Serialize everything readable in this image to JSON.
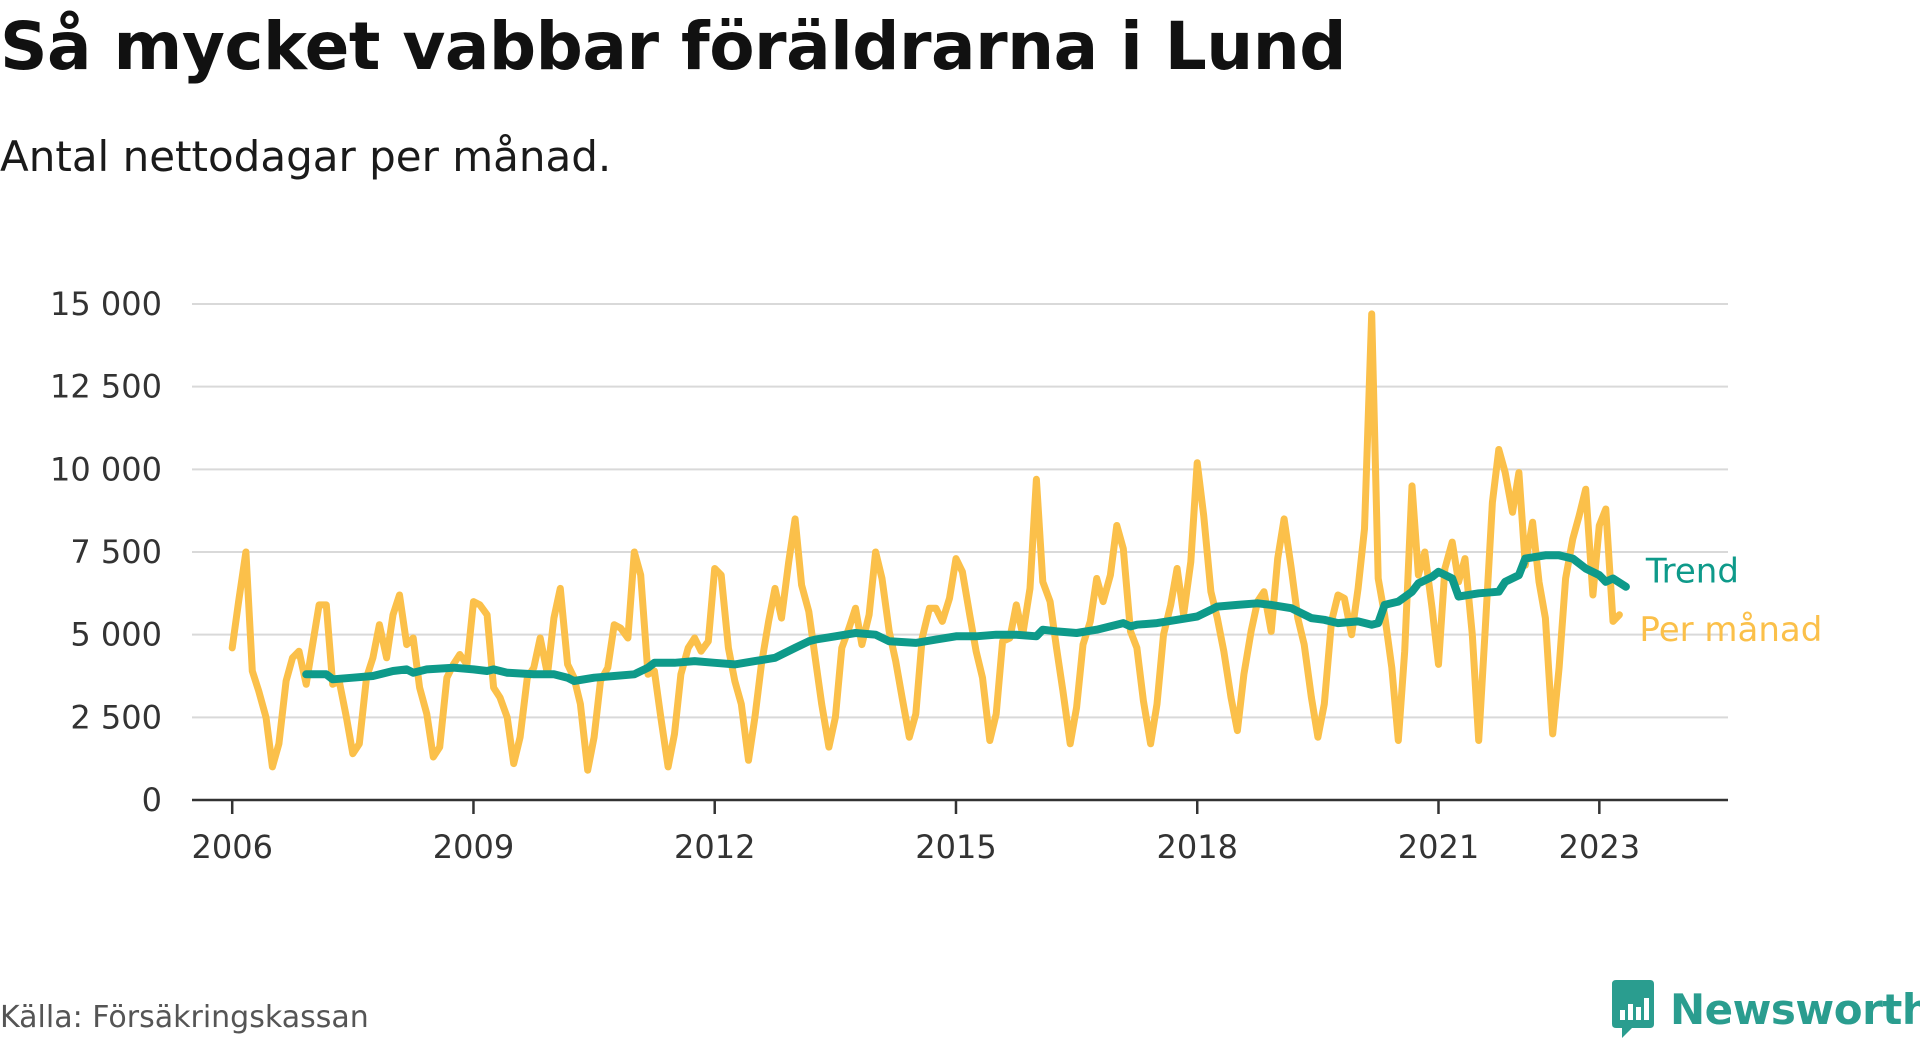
{
  "title": "Så mycket vabbar föräldrarna i Lund",
  "subtitle": "Antal nettodagar per månad.",
  "source": "Källa: Försäkringskassan",
  "logo_text": "Newsworthy",
  "colors": {
    "monthly": "#fbc04a",
    "trend": "#0e9a8a",
    "grid": "#d9d9d9",
    "axis": "#333333",
    "logo": "#2a9d8f"
  },
  "chart_data": {
    "type": "line",
    "title": "Så mycket vabbar föräldrarna i Lund",
    "subtitle": "Antal nettodagar per månad.",
    "xlabel": "",
    "ylabel": "",
    "xlim": [
      2005.5,
      2024.6
    ],
    "ylim": [
      0,
      15000
    ],
    "yticks": [
      0,
      2500,
      5000,
      7500,
      10000,
      12500,
      15000
    ],
    "ytick_labels": [
      "0",
      "2 500",
      "5 000",
      "7 500",
      "10 000",
      "12 500",
      "15 000"
    ],
    "xticks": [
      2006,
      2009,
      2012,
      2015,
      2018,
      2021,
      2023
    ],
    "xtick_labels": [
      "2006",
      "2009",
      "2012",
      "2015",
      "2018",
      "2021",
      "2023"
    ],
    "grid": true,
    "legend": "direct labels at line ends",
    "series": [
      {
        "name": "Per månad",
        "color": "#fbc04a",
        "points": [
          [
            2006.0,
            4600
          ],
          [
            2006.08,
            6000
          ],
          [
            2006.17,
            7500
          ],
          [
            2006.25,
            3900
          ],
          [
            2006.33,
            3300
          ],
          [
            2006.42,
            2500
          ],
          [
            2006.5,
            1000
          ],
          [
            2006.58,
            1700
          ],
          [
            2006.67,
            3600
          ],
          [
            2006.75,
            4300
          ],
          [
            2006.83,
            4500
          ],
          [
            2006.92,
            3500
          ],
          [
            2007.0,
            4700
          ],
          [
            2007.08,
            5900
          ],
          [
            2007.17,
            5900
          ],
          [
            2007.25,
            3500
          ],
          [
            2007.33,
            3600
          ],
          [
            2007.42,
            2500
          ],
          [
            2007.5,
            1400
          ],
          [
            2007.58,
            1700
          ],
          [
            2007.67,
            3700
          ],
          [
            2007.75,
            4300
          ],
          [
            2007.83,
            5300
          ],
          [
            2007.92,
            4300
          ],
          [
            2008.0,
            5600
          ],
          [
            2008.08,
            6200
          ],
          [
            2008.17,
            4700
          ],
          [
            2008.25,
            4900
          ],
          [
            2008.33,
            3400
          ],
          [
            2008.42,
            2600
          ],
          [
            2008.5,
            1300
          ],
          [
            2008.58,
            1600
          ],
          [
            2008.67,
            3700
          ],
          [
            2008.75,
            4100
          ],
          [
            2008.83,
            4400
          ],
          [
            2008.92,
            4100
          ],
          [
            2009.0,
            6000
          ],
          [
            2009.08,
            5900
          ],
          [
            2009.17,
            5600
          ],
          [
            2009.25,
            3400
          ],
          [
            2009.33,
            3100
          ],
          [
            2009.42,
            2500
          ],
          [
            2009.5,
            1100
          ],
          [
            2009.58,
            1900
          ],
          [
            2009.67,
            3700
          ],
          [
            2009.75,
            4000
          ],
          [
            2009.83,
            4900
          ],
          [
            2009.92,
            3800
          ],
          [
            2010.0,
            5500
          ],
          [
            2010.08,
            6400
          ],
          [
            2010.17,
            4100
          ],
          [
            2010.25,
            3700
          ],
          [
            2010.33,
            2900
          ],
          [
            2010.42,
            900
          ],
          [
            2010.5,
            1900
          ],
          [
            2010.58,
            3600
          ],
          [
            2010.67,
            4000
          ],
          [
            2010.75,
            5300
          ],
          [
            2010.83,
            5200
          ],
          [
            2010.92,
            4900
          ],
          [
            2011.0,
            7500
          ],
          [
            2011.08,
            6800
          ],
          [
            2011.17,
            3800
          ],
          [
            2011.25,
            3900
          ],
          [
            2011.33,
            2500
          ],
          [
            2011.42,
            1000
          ],
          [
            2011.5,
            2000
          ],
          [
            2011.58,
            3800
          ],
          [
            2011.67,
            4600
          ],
          [
            2011.75,
            4900
          ],
          [
            2011.83,
            4500
          ],
          [
            2011.92,
            4800
          ],
          [
            2012.0,
            7000
          ],
          [
            2012.08,
            6800
          ],
          [
            2012.17,
            4600
          ],
          [
            2012.25,
            3600
          ],
          [
            2012.33,
            2900
          ],
          [
            2012.42,
            1200
          ],
          [
            2012.5,
            2500
          ],
          [
            2012.58,
            4100
          ],
          [
            2012.67,
            5400
          ],
          [
            2012.75,
            6400
          ],
          [
            2012.83,
            5500
          ],
          [
            2012.92,
            7200
          ],
          [
            2013.0,
            8500
          ],
          [
            2013.08,
            6500
          ],
          [
            2013.17,
            5700
          ],
          [
            2013.25,
            4300
          ],
          [
            2013.33,
            2900
          ],
          [
            2013.42,
            1600
          ],
          [
            2013.5,
            2500
          ],
          [
            2013.58,
            4600
          ],
          [
            2013.67,
            5200
          ],
          [
            2013.75,
            5800
          ],
          [
            2013.83,
            4700
          ],
          [
            2013.92,
            5600
          ],
          [
            2014.0,
            7500
          ],
          [
            2014.08,
            6700
          ],
          [
            2014.17,
            5100
          ],
          [
            2014.25,
            4200
          ],
          [
            2014.33,
            3100
          ],
          [
            2014.42,
            1900
          ],
          [
            2014.5,
            2600
          ],
          [
            2014.58,
            4900
          ],
          [
            2014.67,
            5800
          ],
          [
            2014.75,
            5800
          ],
          [
            2014.83,
            5400
          ],
          [
            2014.92,
            6100
          ],
          [
            2015.0,
            7300
          ],
          [
            2015.08,
            6900
          ],
          [
            2015.17,
            5600
          ],
          [
            2015.25,
            4500
          ],
          [
            2015.33,
            3700
          ],
          [
            2015.42,
            1800
          ],
          [
            2015.5,
            2600
          ],
          [
            2015.58,
            4800
          ],
          [
            2015.67,
            4900
          ],
          [
            2015.75,
            5900
          ],
          [
            2015.83,
            5000
          ],
          [
            2015.92,
            6400
          ],
          [
            2016.0,
            9700
          ],
          [
            2016.08,
            6600
          ],
          [
            2016.17,
            6000
          ],
          [
            2016.25,
            4600
          ],
          [
            2016.33,
            3300
          ],
          [
            2016.42,
            1700
          ],
          [
            2016.5,
            2800
          ],
          [
            2016.58,
            4700
          ],
          [
            2016.67,
            5400
          ],
          [
            2016.75,
            6700
          ],
          [
            2016.83,
            6000
          ],
          [
            2016.92,
            6800
          ],
          [
            2017.0,
            8300
          ],
          [
            2017.08,
            7600
          ],
          [
            2017.17,
            5100
          ],
          [
            2017.25,
            4600
          ],
          [
            2017.33,
            3000
          ],
          [
            2017.42,
            1700
          ],
          [
            2017.5,
            2900
          ],
          [
            2017.58,
            5000
          ],
          [
            2017.67,
            5900
          ],
          [
            2017.75,
            7000
          ],
          [
            2017.83,
            5600
          ],
          [
            2017.92,
            7200
          ],
          [
            2018.0,
            10200
          ],
          [
            2018.08,
            8600
          ],
          [
            2018.17,
            6300
          ],
          [
            2018.25,
            5500
          ],
          [
            2018.33,
            4500
          ],
          [
            2018.42,
            3100
          ],
          [
            2018.5,
            2100
          ],
          [
            2018.58,
            3800
          ],
          [
            2018.67,
            5100
          ],
          [
            2018.75,
            6000
          ],
          [
            2018.83,
            6300
          ],
          [
            2018.92,
            5100
          ],
          [
            2019.0,
            7300
          ],
          [
            2019.08,
            8500
          ],
          [
            2019.17,
            7000
          ],
          [
            2019.25,
            5500
          ],
          [
            2019.33,
            4700
          ],
          [
            2019.42,
            3100
          ],
          [
            2019.5,
            1900
          ],
          [
            2019.58,
            2900
          ],
          [
            2019.67,
            5400
          ],
          [
            2019.75,
            6200
          ],
          [
            2019.83,
            6100
          ],
          [
            2019.92,
            5000
          ],
          [
            2020.0,
            6400
          ],
          [
            2020.08,
            8200
          ],
          [
            2020.17,
            14700
          ],
          [
            2020.25,
            6700
          ],
          [
            2020.33,
            5600
          ],
          [
            2020.42,
            4000
          ],
          [
            2020.5,
            1800
          ],
          [
            2020.58,
            4500
          ],
          [
            2020.67,
            9500
          ],
          [
            2020.75,
            6800
          ],
          [
            2020.83,
            7500
          ],
          [
            2020.92,
            5800
          ],
          [
            2021.0,
            4100
          ],
          [
            2021.08,
            7000
          ],
          [
            2021.17,
            7800
          ],
          [
            2021.25,
            6600
          ],
          [
            2021.33,
            7300
          ],
          [
            2021.42,
            5000
          ],
          [
            2021.5,
            1800
          ],
          [
            2021.58,
            5100
          ],
          [
            2021.67,
            9000
          ],
          [
            2021.75,
            10600
          ],
          [
            2021.83,
            9900
          ],
          [
            2021.92,
            8700
          ],
          [
            2022.0,
            9900
          ],
          [
            2022.08,
            7100
          ],
          [
            2022.17,
            8400
          ],
          [
            2022.25,
            6600
          ],
          [
            2022.33,
            5500
          ],
          [
            2022.42,
            2000
          ],
          [
            2022.5,
            4000
          ],
          [
            2022.58,
            6700
          ],
          [
            2022.67,
            7900
          ],
          [
            2022.75,
            8600
          ],
          [
            2022.83,
            9400
          ],
          [
            2022.92,
            6200
          ],
          [
            2023.0,
            8300
          ],
          [
            2023.08,
            8800
          ],
          [
            2023.17,
            5400
          ],
          [
            2023.25,
            5600
          ]
        ]
      },
      {
        "name": "Trend",
        "color": "#0e9a8a",
        "points": [
          [
            2006.92,
            3800
          ],
          [
            2007.17,
            3800
          ],
          [
            2007.25,
            3650
          ],
          [
            2007.5,
            3700
          ],
          [
            2007.75,
            3750
          ],
          [
            2008.0,
            3900
          ],
          [
            2008.17,
            3950
          ],
          [
            2008.25,
            3850
          ],
          [
            2008.42,
            3950
          ],
          [
            2008.75,
            4000
          ],
          [
            2009.0,
            3950
          ],
          [
            2009.17,
            3900
          ],
          [
            2009.25,
            3950
          ],
          [
            2009.42,
            3850
          ],
          [
            2009.75,
            3800
          ],
          [
            2010.0,
            3800
          ],
          [
            2010.17,
            3700
          ],
          [
            2010.25,
            3600
          ],
          [
            2010.5,
            3700
          ],
          [
            2010.75,
            3750
          ],
          [
            2011.0,
            3800
          ],
          [
            2011.17,
            4000
          ],
          [
            2011.25,
            4150
          ],
          [
            2011.5,
            4150
          ],
          [
            2011.75,
            4200
          ],
          [
            2012.0,
            4150
          ],
          [
            2012.25,
            4100
          ],
          [
            2012.5,
            4200
          ],
          [
            2012.75,
            4300
          ],
          [
            2013.0,
            4600
          ],
          [
            2013.17,
            4800
          ],
          [
            2013.25,
            4850
          ],
          [
            2013.5,
            4950
          ],
          [
            2013.75,
            5050
          ],
          [
            2014.0,
            5000
          ],
          [
            2014.17,
            4800
          ],
          [
            2014.5,
            4750
          ],
          [
            2014.75,
            4850
          ],
          [
            2015.0,
            4950
          ],
          [
            2015.25,
            4950
          ],
          [
            2015.5,
            5000
          ],
          [
            2015.75,
            5000
          ],
          [
            2016.0,
            4950
          ],
          [
            2016.08,
            5150
          ],
          [
            2016.25,
            5100
          ],
          [
            2016.5,
            5050
          ],
          [
            2016.75,
            5150
          ],
          [
            2017.0,
            5300
          ],
          [
            2017.08,
            5350
          ],
          [
            2017.17,
            5250
          ],
          [
            2017.25,
            5300
          ],
          [
            2017.5,
            5350
          ],
          [
            2017.75,
            5450
          ],
          [
            2018.0,
            5550
          ],
          [
            2018.17,
            5750
          ],
          [
            2018.25,
            5850
          ],
          [
            2018.5,
            5900
          ],
          [
            2018.75,
            5950
          ],
          [
            2018.92,
            5900
          ],
          [
            2019.17,
            5800
          ],
          [
            2019.42,
            5500
          ],
          [
            2019.58,
            5450
          ],
          [
            2019.75,
            5350
          ],
          [
            2020.0,
            5400
          ],
          [
            2020.17,
            5300
          ],
          [
            2020.25,
            5350
          ],
          [
            2020.33,
            5900
          ],
          [
            2020.5,
            6000
          ],
          [
            2020.67,
            6300
          ],
          [
            2020.75,
            6550
          ],
          [
            2020.92,
            6750
          ],
          [
            2021.0,
            6900
          ],
          [
            2021.17,
            6700
          ],
          [
            2021.25,
            6150
          ],
          [
            2021.5,
            6250
          ],
          [
            2021.75,
            6300
          ],
          [
            2021.83,
            6600
          ],
          [
            2022.0,
            6800
          ],
          [
            2022.08,
            7300
          ],
          [
            2022.33,
            7400
          ],
          [
            2022.5,
            7400
          ],
          [
            2022.67,
            7300
          ],
          [
            2022.83,
            7000
          ],
          [
            2023.0,
            6800
          ],
          [
            2023.08,
            6600
          ],
          [
            2023.17,
            6700
          ],
          [
            2023.33,
            6450
          ]
        ]
      }
    ]
  }
}
